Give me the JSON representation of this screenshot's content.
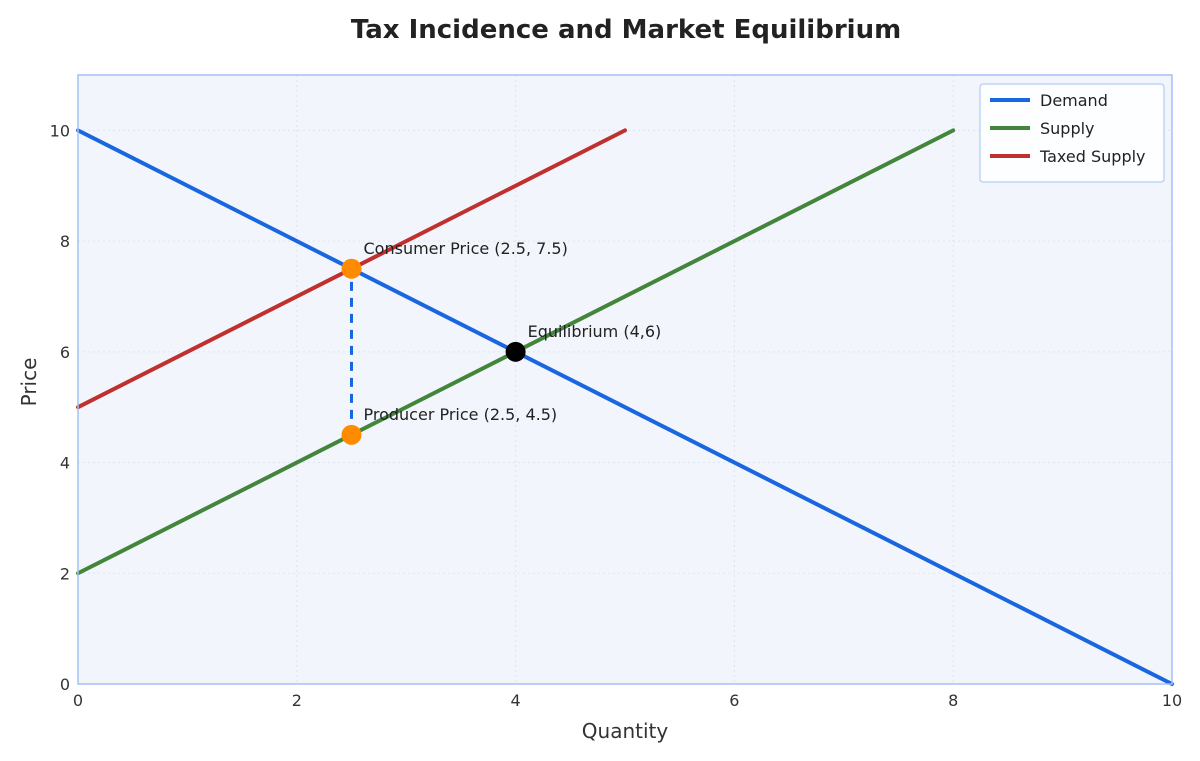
{
  "chart_data": {
    "type": "line",
    "title": "Tax Incidence and Market Equilibrium",
    "xlabel": "Quantity",
    "ylabel": "Price",
    "xlim": [
      0,
      10
    ],
    "ylim": [
      0,
      11
    ],
    "xticks": [
      0,
      2,
      4,
      6,
      8,
      10
    ],
    "yticks": [
      0,
      2,
      4,
      6,
      8,
      10
    ],
    "grid": true,
    "legend_position": "top-right",
    "series": [
      {
        "name": "Demand",
        "color": "#1a66e0",
        "x": [
          0,
          10
        ],
        "y": [
          10,
          0
        ]
      },
      {
        "name": "Supply",
        "color": "#43853a",
        "x": [
          0,
          8
        ],
        "y": [
          2,
          10
        ]
      },
      {
        "name": "Taxed Supply",
        "color": "#c0302e",
        "x": [
          0,
          5
        ],
        "y": [
          5,
          10
        ]
      }
    ],
    "tax_wedge": {
      "x": 2.5,
      "y_from": 4.5,
      "y_to": 7.5,
      "color": "#1a66e0"
    },
    "points": [
      {
        "label": "Consumer Price (2.5, 7.5)",
        "x": 2.5,
        "y": 7.5,
        "color": "#ff8c00"
      },
      {
        "label": "Producer Price (2.5, 4.5)",
        "x": 2.5,
        "y": 4.5,
        "color": "#ff8c00"
      },
      {
        "label": "Equilibrium (4,6)",
        "x": 4,
        "y": 6,
        "color": "#000000"
      }
    ],
    "colors": {
      "plot_bg": "#f2f6fc",
      "frame": "#a3c1f5",
      "grid": "#dde5f0"
    }
  }
}
